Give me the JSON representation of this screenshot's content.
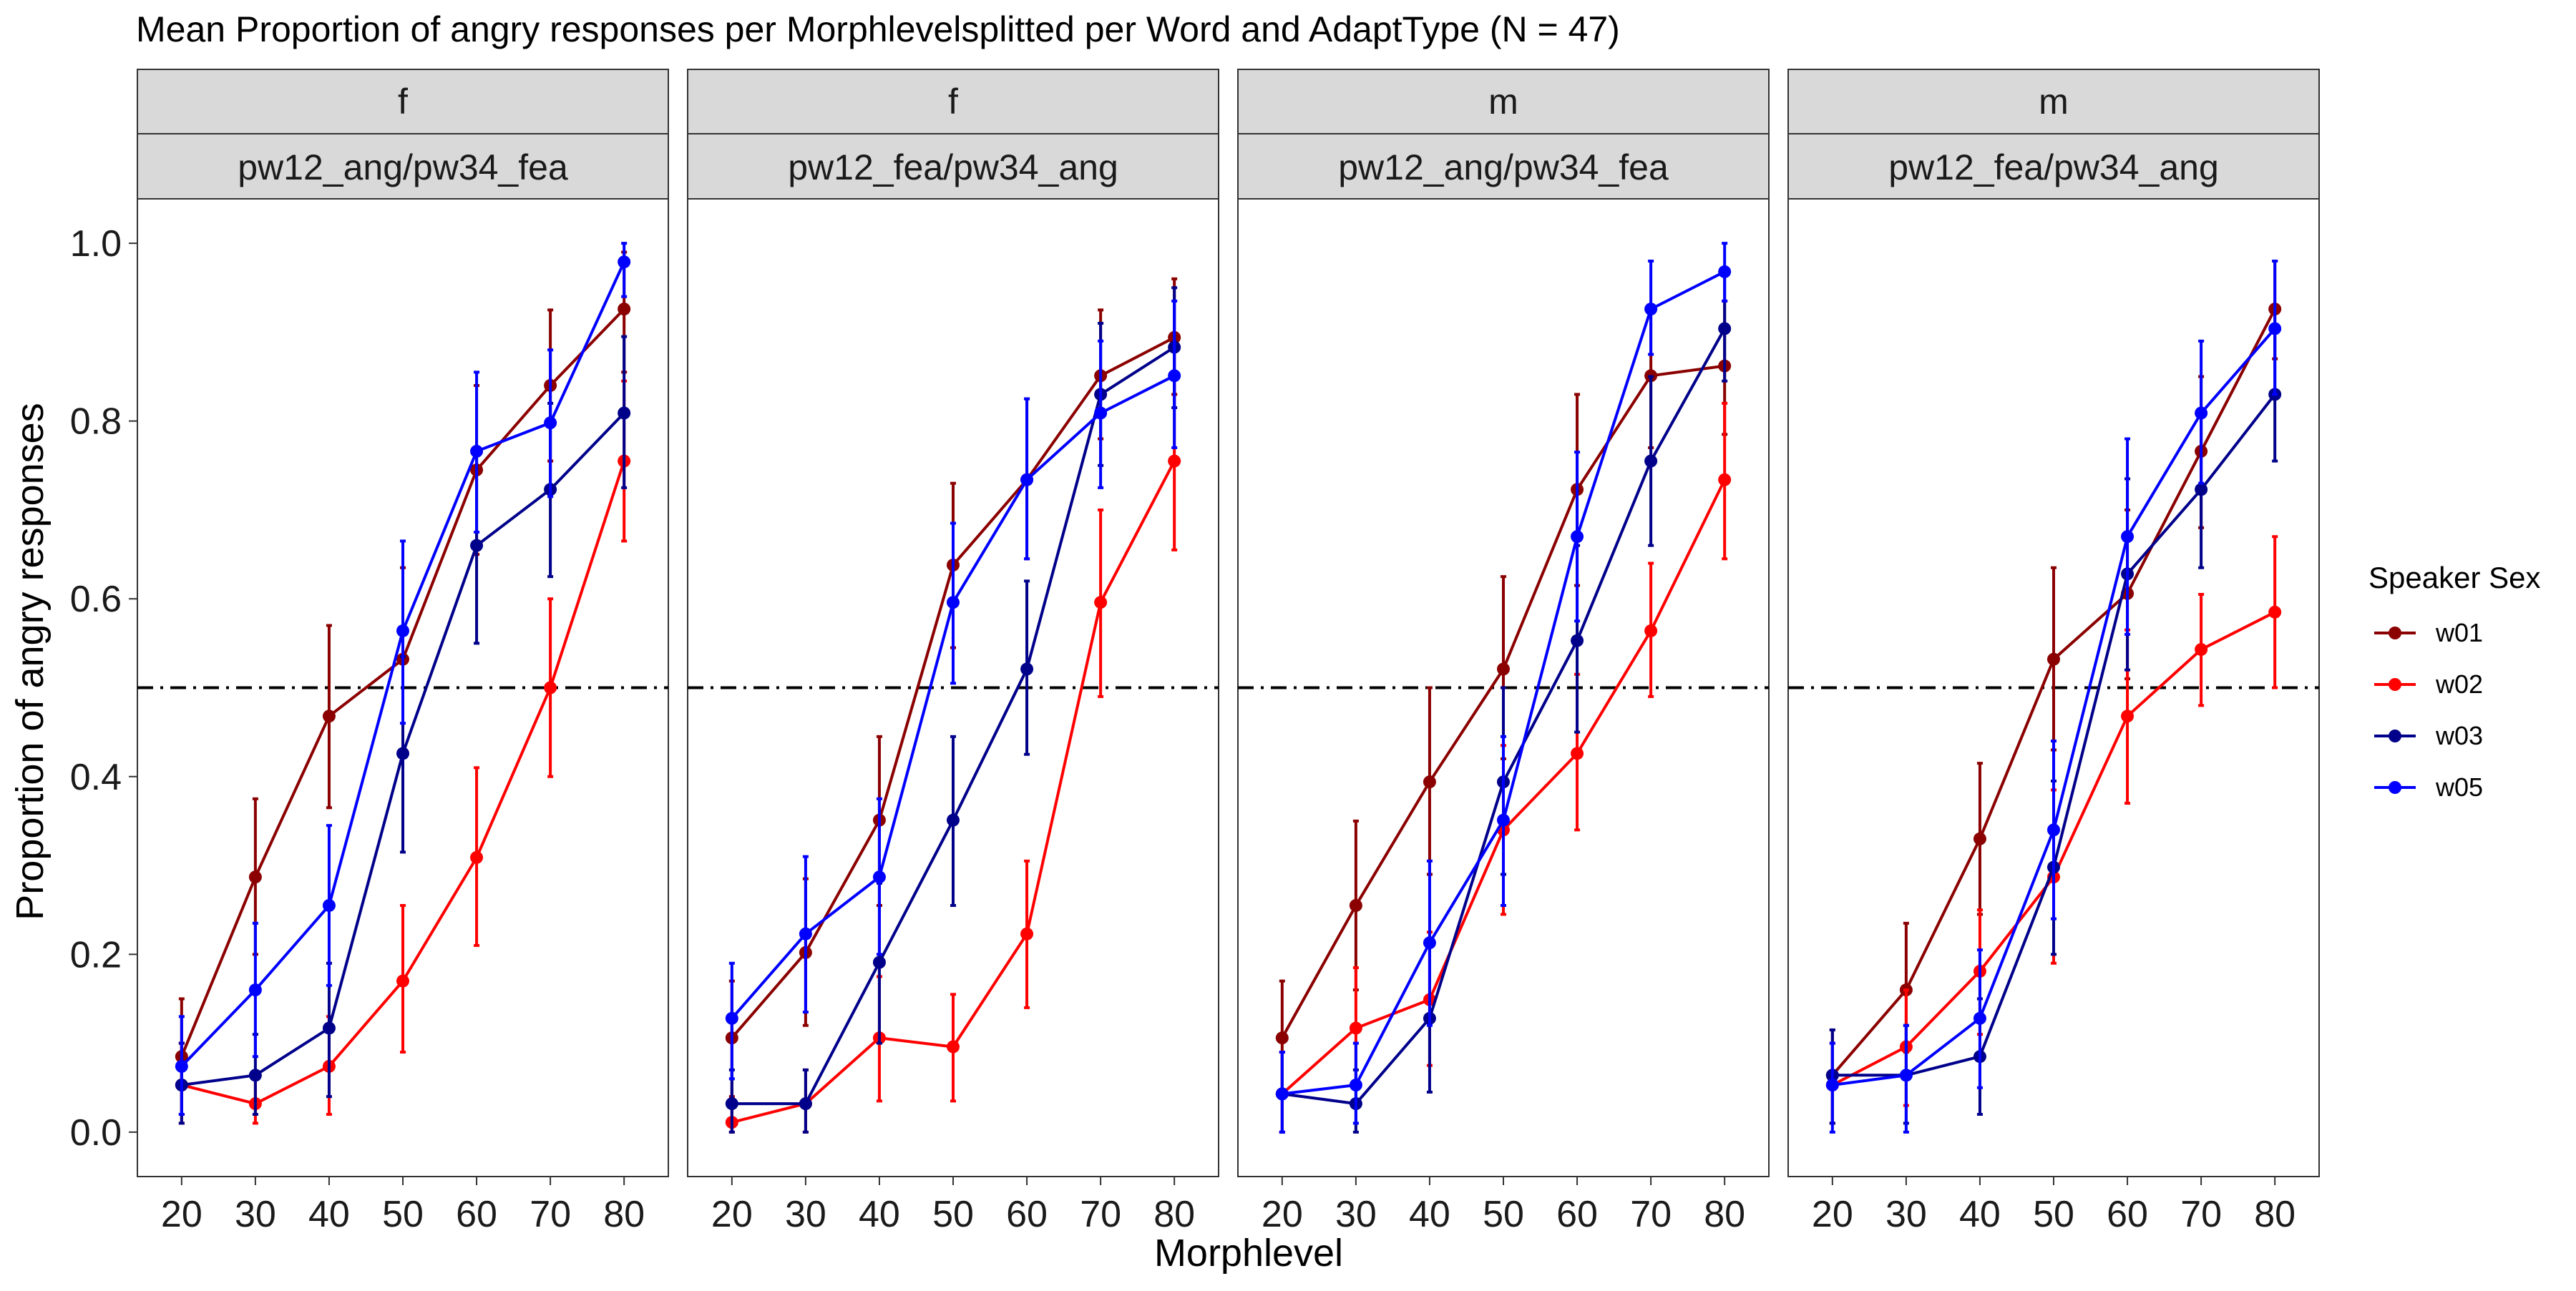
{
  "chart_data": {
    "type": "line",
    "title": "Mean Proportion of angry responses per Morphlevelsplitted per Word and AdaptType (N = 47)",
    "xlabel": "Morphlevel",
    "ylabel": "Proportion of angry responses",
    "x": [
      20,
      30,
      40,
      50,
      60,
      70,
      80
    ],
    "ylim": [
      -0.05,
      1.05
    ],
    "yticks": [
      0.0,
      0.2,
      0.4,
      0.6,
      0.8,
      1.0
    ],
    "ytick_labels": [
      "0.0",
      "0.2",
      "0.4",
      "0.6",
      "0.8",
      "1.0"
    ],
    "reference_line": 0.5,
    "legend": {
      "title": "Speaker Sex",
      "placement": "right"
    },
    "series_colors": {
      "w01": "#8b0000",
      "w02": "#ff0000",
      "w03": "#00008b",
      "w05": "#0000ff"
    },
    "panels": [
      {
        "strip_top": "f",
        "strip_bottom": "pw12_ang/pw34_fea",
        "series": [
          {
            "name": "w01",
            "values": [
              0.085,
              0.287,
              0.468,
              0.532,
              0.745,
              0.84,
              0.926
            ],
            "lower": [
              0.02,
              0.2,
              0.365,
              0.43,
              0.65,
              0.755,
              0.855
            ],
            "upper": [
              0.15,
              0.375,
              0.57,
              0.635,
              0.84,
              0.925,
              0.99
            ]
          },
          {
            "name": "w02",
            "values": [
              0.053,
              0.032,
              0.074,
              0.17,
              0.309,
              0.5,
              0.755
            ],
            "lower": [
              0.01,
              0.01,
              0.02,
              0.09,
              0.21,
              0.4,
              0.665
            ],
            "upper": [
              0.1,
              0.06,
              0.13,
              0.255,
              0.41,
              0.6,
              0.845
            ]
          },
          {
            "name": "w03",
            "values": [
              0.053,
              0.064,
              0.117,
              0.426,
              0.66,
              0.723,
              0.809
            ],
            "lower": [
              0.01,
              0.02,
              0.04,
              0.315,
              0.55,
              0.625,
              0.725
            ],
            "upper": [
              0.1,
              0.11,
              0.19,
              0.535,
              0.765,
              0.82,
              0.895
            ]
          },
          {
            "name": "w05",
            "values": [
              0.074,
              0.16,
              0.255,
              0.564,
              0.766,
              0.798,
              0.979
            ],
            "lower": [
              0.02,
              0.085,
              0.165,
              0.46,
              0.675,
              0.715,
              0.94
            ],
            "upper": [
              0.13,
              0.235,
              0.345,
              0.665,
              0.855,
              0.88,
              1.0
            ]
          }
        ]
      },
      {
        "strip_top": "f",
        "strip_bottom": "pw12_fea/pw34_ang",
        "series": [
          {
            "name": "w01",
            "values": [
              0.106,
              0.202,
              0.351,
              0.638,
              0.734,
              0.851,
              0.894
            ],
            "lower": [
              0.04,
              0.12,
              0.255,
              0.545,
              0.645,
              0.78,
              0.83
            ],
            "upper": [
              0.17,
              0.285,
              0.445,
              0.73,
              0.825,
              0.925,
              0.96
            ]
          },
          {
            "name": "w02",
            "values": [
              0.011,
              0.032,
              0.106,
              0.096,
              0.223,
              0.596,
              0.755
            ],
            "lower": [
              0.0,
              0.0,
              0.035,
              0.035,
              0.14,
              0.49,
              0.655
            ],
            "upper": [
              0.03,
              0.07,
              0.175,
              0.155,
              0.305,
              0.7,
              0.855
            ]
          },
          {
            "name": "w03",
            "values": [
              0.032,
              0.032,
              0.191,
              0.351,
              0.521,
              0.83,
              0.883
            ],
            "lower": [
              0.0,
              0.0,
              0.1,
              0.255,
              0.425,
              0.75,
              0.815
            ],
            "upper": [
              0.07,
              0.07,
              0.28,
              0.445,
              0.62,
              0.91,
              0.95
            ]
          },
          {
            "name": "w05",
            "values": [
              0.128,
              0.223,
              0.287,
              0.596,
              0.734,
              0.809,
              0.851
            ],
            "lower": [
              0.06,
              0.135,
              0.2,
              0.505,
              0.645,
              0.725,
              0.77
            ],
            "upper": [
              0.19,
              0.31,
              0.375,
              0.685,
              0.825,
              0.89,
              0.935
            ]
          }
        ]
      },
      {
        "strip_top": "m",
        "strip_bottom": "pw12_ang/pw34_fea",
        "series": [
          {
            "name": "w01",
            "values": [
              0.106,
              0.255,
              0.394,
              0.521,
              0.723,
              0.851,
              0.862
            ],
            "lower": [
              0.045,
              0.16,
              0.29,
              0.42,
              0.615,
              0.77,
              0.785
            ],
            "upper": [
              0.17,
              0.35,
              0.5,
              0.625,
              0.83,
              0.93,
              0.935
            ]
          },
          {
            "name": "w02",
            "values": [
              0.043,
              0.117,
              0.149,
              0.34,
              0.426,
              0.564,
              0.734
            ],
            "lower": [
              0.0,
              0.05,
              0.075,
              0.245,
              0.34,
              0.49,
              0.645
            ],
            "upper": [
              0.09,
              0.185,
              0.225,
              0.435,
              0.515,
              0.64,
              0.82
            ]
          },
          {
            "name": "w03",
            "values": [
              0.043,
              0.032,
              0.128,
              0.394,
              0.553,
              0.755,
              0.904
            ],
            "lower": [
              0.0,
              0.0,
              0.045,
              0.29,
              0.45,
              0.66,
              0.845
            ],
            "upper": [
              0.09,
              0.07,
              0.21,
              0.5,
              0.66,
              0.85,
              0.965
            ]
          },
          {
            "name": "w05",
            "values": [
              0.043,
              0.053,
              0.213,
              0.351,
              0.67,
              0.926,
              0.968
            ],
            "lower": [
              0.0,
              0.01,
              0.12,
              0.255,
              0.575,
              0.875,
              0.935
            ],
            "upper": [
              0.09,
              0.1,
              0.305,
              0.445,
              0.765,
              0.98,
              1.0
            ]
          }
        ]
      },
      {
        "strip_top": "m",
        "strip_bottom": "pw12_fea/pw34_ang",
        "series": [
          {
            "name": "w01",
            "values": [
              0.064,
              0.16,
              0.33,
              0.532,
              0.606,
              0.766,
              0.926
            ],
            "lower": [
              0.01,
              0.09,
              0.245,
              0.43,
              0.51,
              0.68,
              0.87
            ],
            "upper": [
              0.115,
              0.235,
              0.415,
              0.635,
              0.7,
              0.85,
              0.98
            ]
          },
          {
            "name": "w02",
            "values": [
              0.053,
              0.096,
              0.181,
              0.287,
              0.468,
              0.543,
              0.585
            ],
            "lower": [
              0.01,
              0.03,
              0.11,
              0.19,
              0.37,
              0.48,
              0.5
            ],
            "upper": [
              0.1,
              0.16,
              0.25,
              0.385,
              0.565,
              0.605,
              0.67
            ]
          },
          {
            "name": "w03",
            "values": [
              0.064,
              0.064,
              0.085,
              0.298,
              0.628,
              0.723,
              0.83
            ],
            "lower": [
              0.01,
              0.01,
              0.02,
              0.2,
              0.52,
              0.635,
              0.755
            ],
            "upper": [
              0.115,
              0.12,
              0.15,
              0.395,
              0.735,
              0.81,
              0.905
            ]
          },
          {
            "name": "w05",
            "values": [
              0.053,
              0.064,
              0.128,
              0.34,
              0.67,
              0.809,
              0.904
            ],
            "lower": [
              0.0,
              0.0,
              0.05,
              0.24,
              0.56,
              0.73,
              0.83
            ],
            "upper": [
              0.1,
              0.12,
              0.205,
              0.44,
              0.78,
              0.89,
              0.98
            ]
          }
        ]
      }
    ]
  }
}
